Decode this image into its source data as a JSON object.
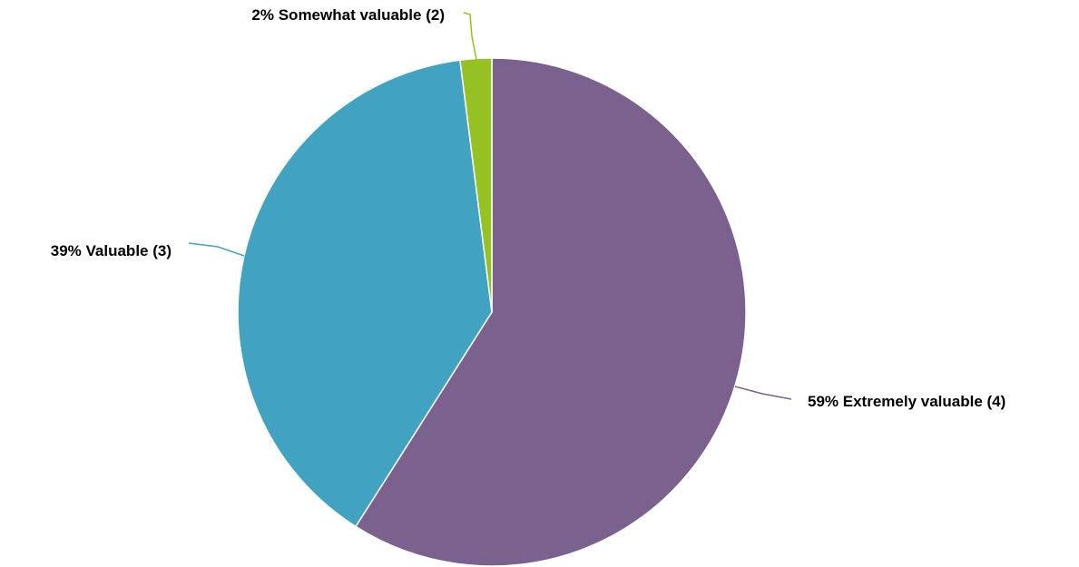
{
  "chart_data": {
    "type": "pie",
    "title": "",
    "slices": [
      {
        "label": "Extremely valuable (4)",
        "value": 59,
        "display": "59% Extremely valuable (4)",
        "color": "#7B618D"
      },
      {
        "label": "Valuable (3)",
        "value": 39,
        "display": "39% Valuable (3)",
        "color": "#42A3C1"
      },
      {
        "label": "Somewhat valuable (2)",
        "value": 2,
        "display": "2% Somewhat valuable (2)",
        "color": "#95C222"
      }
    ],
    "start_angle": "12 o'clock",
    "direction": "clockwise",
    "legend": "none",
    "labels": "outside with leader lines"
  }
}
